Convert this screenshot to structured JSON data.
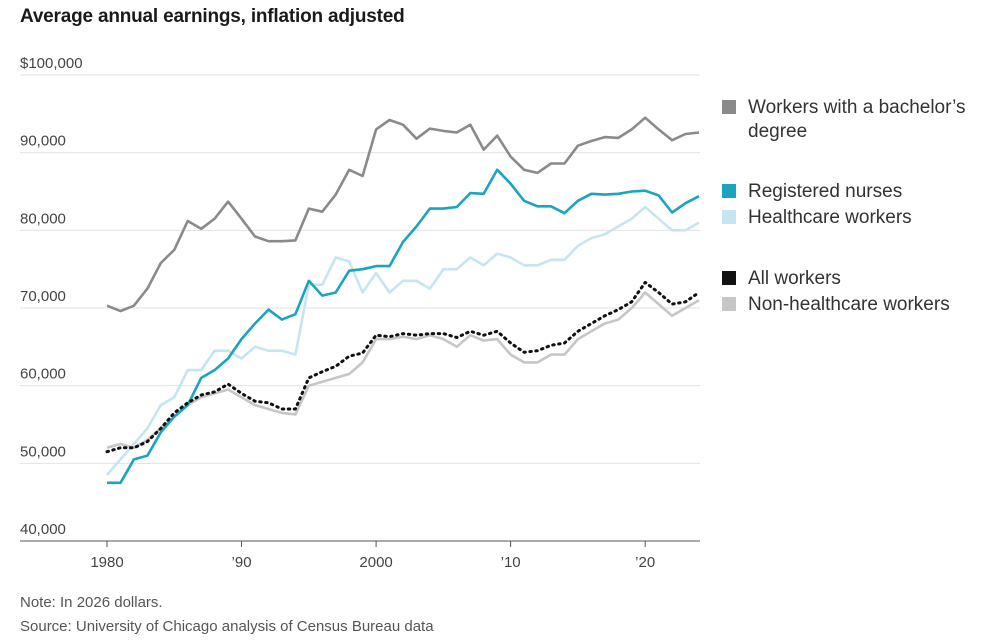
{
  "title": "Average annual earnings, inflation adjusted",
  "note": "Note: In 2026 dollars.",
  "source": "Source: University of Chicago analysis of Census Bureau data",
  "colors": {
    "bachelors": "#8a8a8a",
    "nurses": "#1ba3bf",
    "healthcare": "#c5e6f0",
    "all": "#111111",
    "nonhealthcare": "#c6c6c6"
  },
  "legend": [
    {
      "key": "bachelors",
      "label": "Workers with a bachelor’s degree"
    },
    {
      "key": "nurses",
      "label": "Registered nurses"
    },
    {
      "key": "healthcare",
      "label": "Healthcare workers"
    },
    {
      "key": "all",
      "label": "All workers"
    },
    {
      "key": "nonhealthcare",
      "label": "Non-healthcare workers"
    }
  ],
  "chart_data": {
    "type": "line",
    "title": "Average annual earnings, inflation adjusted",
    "xlabel": "",
    "ylabel": "",
    "ylim": [
      40000,
      100000
    ],
    "xlim": [
      1980,
      2024
    ],
    "y_ticks": [
      {
        "value": 100000,
        "label": "$100,000"
      },
      {
        "value": 90000,
        "label": "90,000"
      },
      {
        "value": 80000,
        "label": "80,000"
      },
      {
        "value": 70000,
        "label": "70,000"
      },
      {
        "value": 60000,
        "label": "60,000"
      },
      {
        "value": 50000,
        "label": "50,000"
      },
      {
        "value": 40000,
        "label": "40,000"
      }
    ],
    "x_ticks": [
      {
        "value": 1980,
        "label": "1980"
      },
      {
        "value": 1990,
        "label": "’90"
      },
      {
        "value": 2000,
        "label": "2000"
      },
      {
        "value": 2010,
        "label": "’10"
      },
      {
        "value": 2020,
        "label": "’20"
      }
    ],
    "x": [
      1980,
      1981,
      1982,
      1983,
      1984,
      1985,
      1986,
      1987,
      1988,
      1989,
      1990,
      1991,
      1992,
      1993,
      1994,
      1995,
      1996,
      1997,
      1998,
      1999,
      2000,
      2001,
      2002,
      2003,
      2004,
      2005,
      2006,
      2007,
      2008,
      2009,
      2010,
      2011,
      2012,
      2013,
      2014,
      2015,
      2016,
      2017,
      2018,
      2019,
      2020,
      2021,
      2022,
      2023,
      2024
    ],
    "series": [
      {
        "key": "healthcare",
        "name": "Healthcare workers",
        "dashed": false,
        "values": [
          48500,
          50500,
          52500,
          54500,
          57500,
          58500,
          62000,
          62000,
          64500,
          64500,
          63500,
          65000,
          64500,
          64500,
          64000,
          73000,
          73000,
          76500,
          76000,
          72000,
          74500,
          72000,
          73500,
          73500,
          72500,
          75000,
          75000,
          76500,
          75500,
          77000,
          76500,
          75500,
          75500,
          76200,
          76200,
          78000,
          79000,
          79500,
          80500,
          81500,
          83000,
          81500,
          80000,
          80000,
          81000
        ]
      },
      {
        "key": "nonhealthcare",
        "name": "Non-healthcare workers",
        "dashed": false,
        "values": [
          52000,
          52500,
          52000,
          53000,
          54500,
          56000,
          57500,
          58500,
          59000,
          59500,
          58500,
          57500,
          57000,
          56500,
          56300,
          60000,
          60500,
          61000,
          61500,
          63000,
          66000,
          66000,
          66300,
          66000,
          66500,
          66000,
          65000,
          66500,
          65800,
          66000,
          64000,
          63000,
          63000,
          64000,
          64000,
          66000,
          67000,
          68000,
          68500,
          70000,
          72000,
          70500,
          69000,
          70000,
          71000
        ]
      },
      {
        "key": "nurses",
        "name": "Registered nurses",
        "dashed": false,
        "values": [
          47500,
          47500,
          50500,
          51000,
          54000,
          56000,
          57500,
          61000,
          62000,
          63500,
          66000,
          68000,
          69800,
          68500,
          69200,
          73500,
          71600,
          72000,
          74800,
          75000,
          75400,
          75400,
          78500,
          80500,
          82800,
          82800,
          83000,
          84800,
          84700,
          87800,
          86000,
          83800,
          83100,
          83100,
          82200,
          83800,
          84700,
          84600,
          84700,
          85000,
          85100,
          84500,
          82300,
          83500,
          84400
        ]
      },
      {
        "key": "all",
        "name": "All workers",
        "dashed": true,
        "values": [
          51500,
          52000,
          52000,
          52800,
          54500,
          56500,
          57800,
          58800,
          59200,
          60200,
          59000,
          58000,
          57800,
          57000,
          57000,
          61000,
          61800,
          62500,
          63800,
          64200,
          66500,
          66300,
          66700,
          66500,
          66700,
          66700,
          66200,
          67000,
          66500,
          67000,
          65500,
          64300,
          64500,
          65200,
          65500,
          67000,
          68000,
          69000,
          69800,
          70800,
          73300,
          72000,
          70500,
          70800,
          72000
        ]
      },
      {
        "key": "bachelors",
        "name": "Workers with a bachelor’s degree",
        "dashed": false,
        "values": [
          70300,
          69600,
          70300,
          72500,
          75800,
          77500,
          81200,
          80200,
          81500,
          83700,
          81500,
          79200,
          78600,
          78600,
          78700,
          82800,
          82400,
          84600,
          87800,
          87000,
          93000,
          94200,
          93600,
          91800,
          93100,
          92800,
          92600,
          93600,
          90400,
          92200,
          89500,
          87800,
          87400,
          88600,
          88600,
          90900,
          91500,
          92000,
          91900,
          93000,
          94500,
          93000,
          91600,
          92400,
          92600
        ]
      }
    ]
  }
}
